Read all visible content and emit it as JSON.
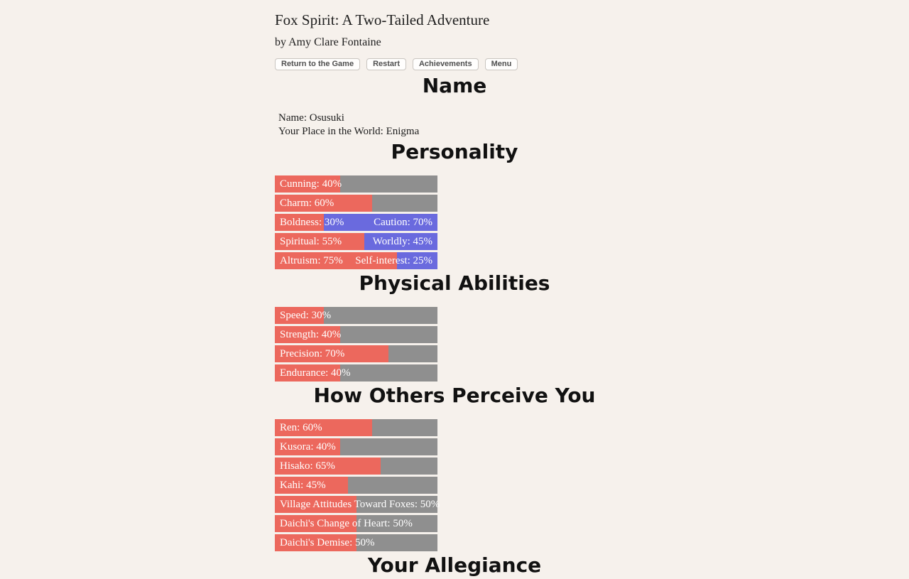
{
  "page": {
    "title": "Fox Spirit: A Two-Tailed Adventure",
    "byline": "by Amy Clare Fontaine"
  },
  "toolbar": {
    "buttons": [
      {
        "label": "Return to the Game"
      },
      {
        "label": "Restart"
      },
      {
        "label": "Achievements"
      },
      {
        "label": "Menu"
      }
    ]
  },
  "colors": {
    "background": "#f6f1ec",
    "bar_fill": "#ec685d",
    "bar_opposed": "#6a6ade",
    "bar_track": "#8f8f8f",
    "bar_text": "#ffffff"
  },
  "sections": [
    {
      "id": "name",
      "heading": "Name",
      "type": "text",
      "lines": [
        "Name: Osusuki",
        "Your Place in the World: Enigma"
      ]
    },
    {
      "id": "personality",
      "heading": "Personality",
      "type": "bars",
      "bars": [
        {
          "label": "Cunning: 40%",
          "value": 40
        },
        {
          "label": "Charm: 60%",
          "value": 60
        },
        {
          "label": "Boldness: 30%",
          "value": 30,
          "opposed_label": "Caution: 70%",
          "opposed_value": 70
        },
        {
          "label": "Spiritual: 55%",
          "value": 55,
          "opposed_label": "Worldly: 45%",
          "opposed_value": 45
        },
        {
          "label": "Altruism: 75%",
          "value": 75,
          "opposed_label": "Self-interest: 25%",
          "opposed_value": 25
        }
      ]
    },
    {
      "id": "physical-abilities",
      "heading": "Physical Abilities",
      "type": "bars",
      "bars": [
        {
          "label": "Speed: 30%",
          "value": 30
        },
        {
          "label": "Strength: 40%",
          "value": 40
        },
        {
          "label": "Precision: 70%",
          "value": 70
        },
        {
          "label": "Endurance: 40%",
          "value": 40
        }
      ]
    },
    {
      "id": "perception",
      "heading": "How Others Perceive You",
      "type": "bars",
      "bars": [
        {
          "label": "Ren: 60%",
          "value": 60
        },
        {
          "label": "Kusora: 40%",
          "value": 40
        },
        {
          "label": "Hisako: 65%",
          "value": 65
        },
        {
          "label": "Kahi: 45%",
          "value": 45
        },
        {
          "label": "Village Attitudes Toward Foxes: 50%",
          "value": 50
        },
        {
          "label": "Daichi's Change of Heart: 50%",
          "value": 50
        },
        {
          "label": "Daichi's Demise: 50%",
          "value": 50
        }
      ]
    },
    {
      "id": "allegiance",
      "heading": "Your Allegiance",
      "type": "bars",
      "bars": []
    }
  ]
}
